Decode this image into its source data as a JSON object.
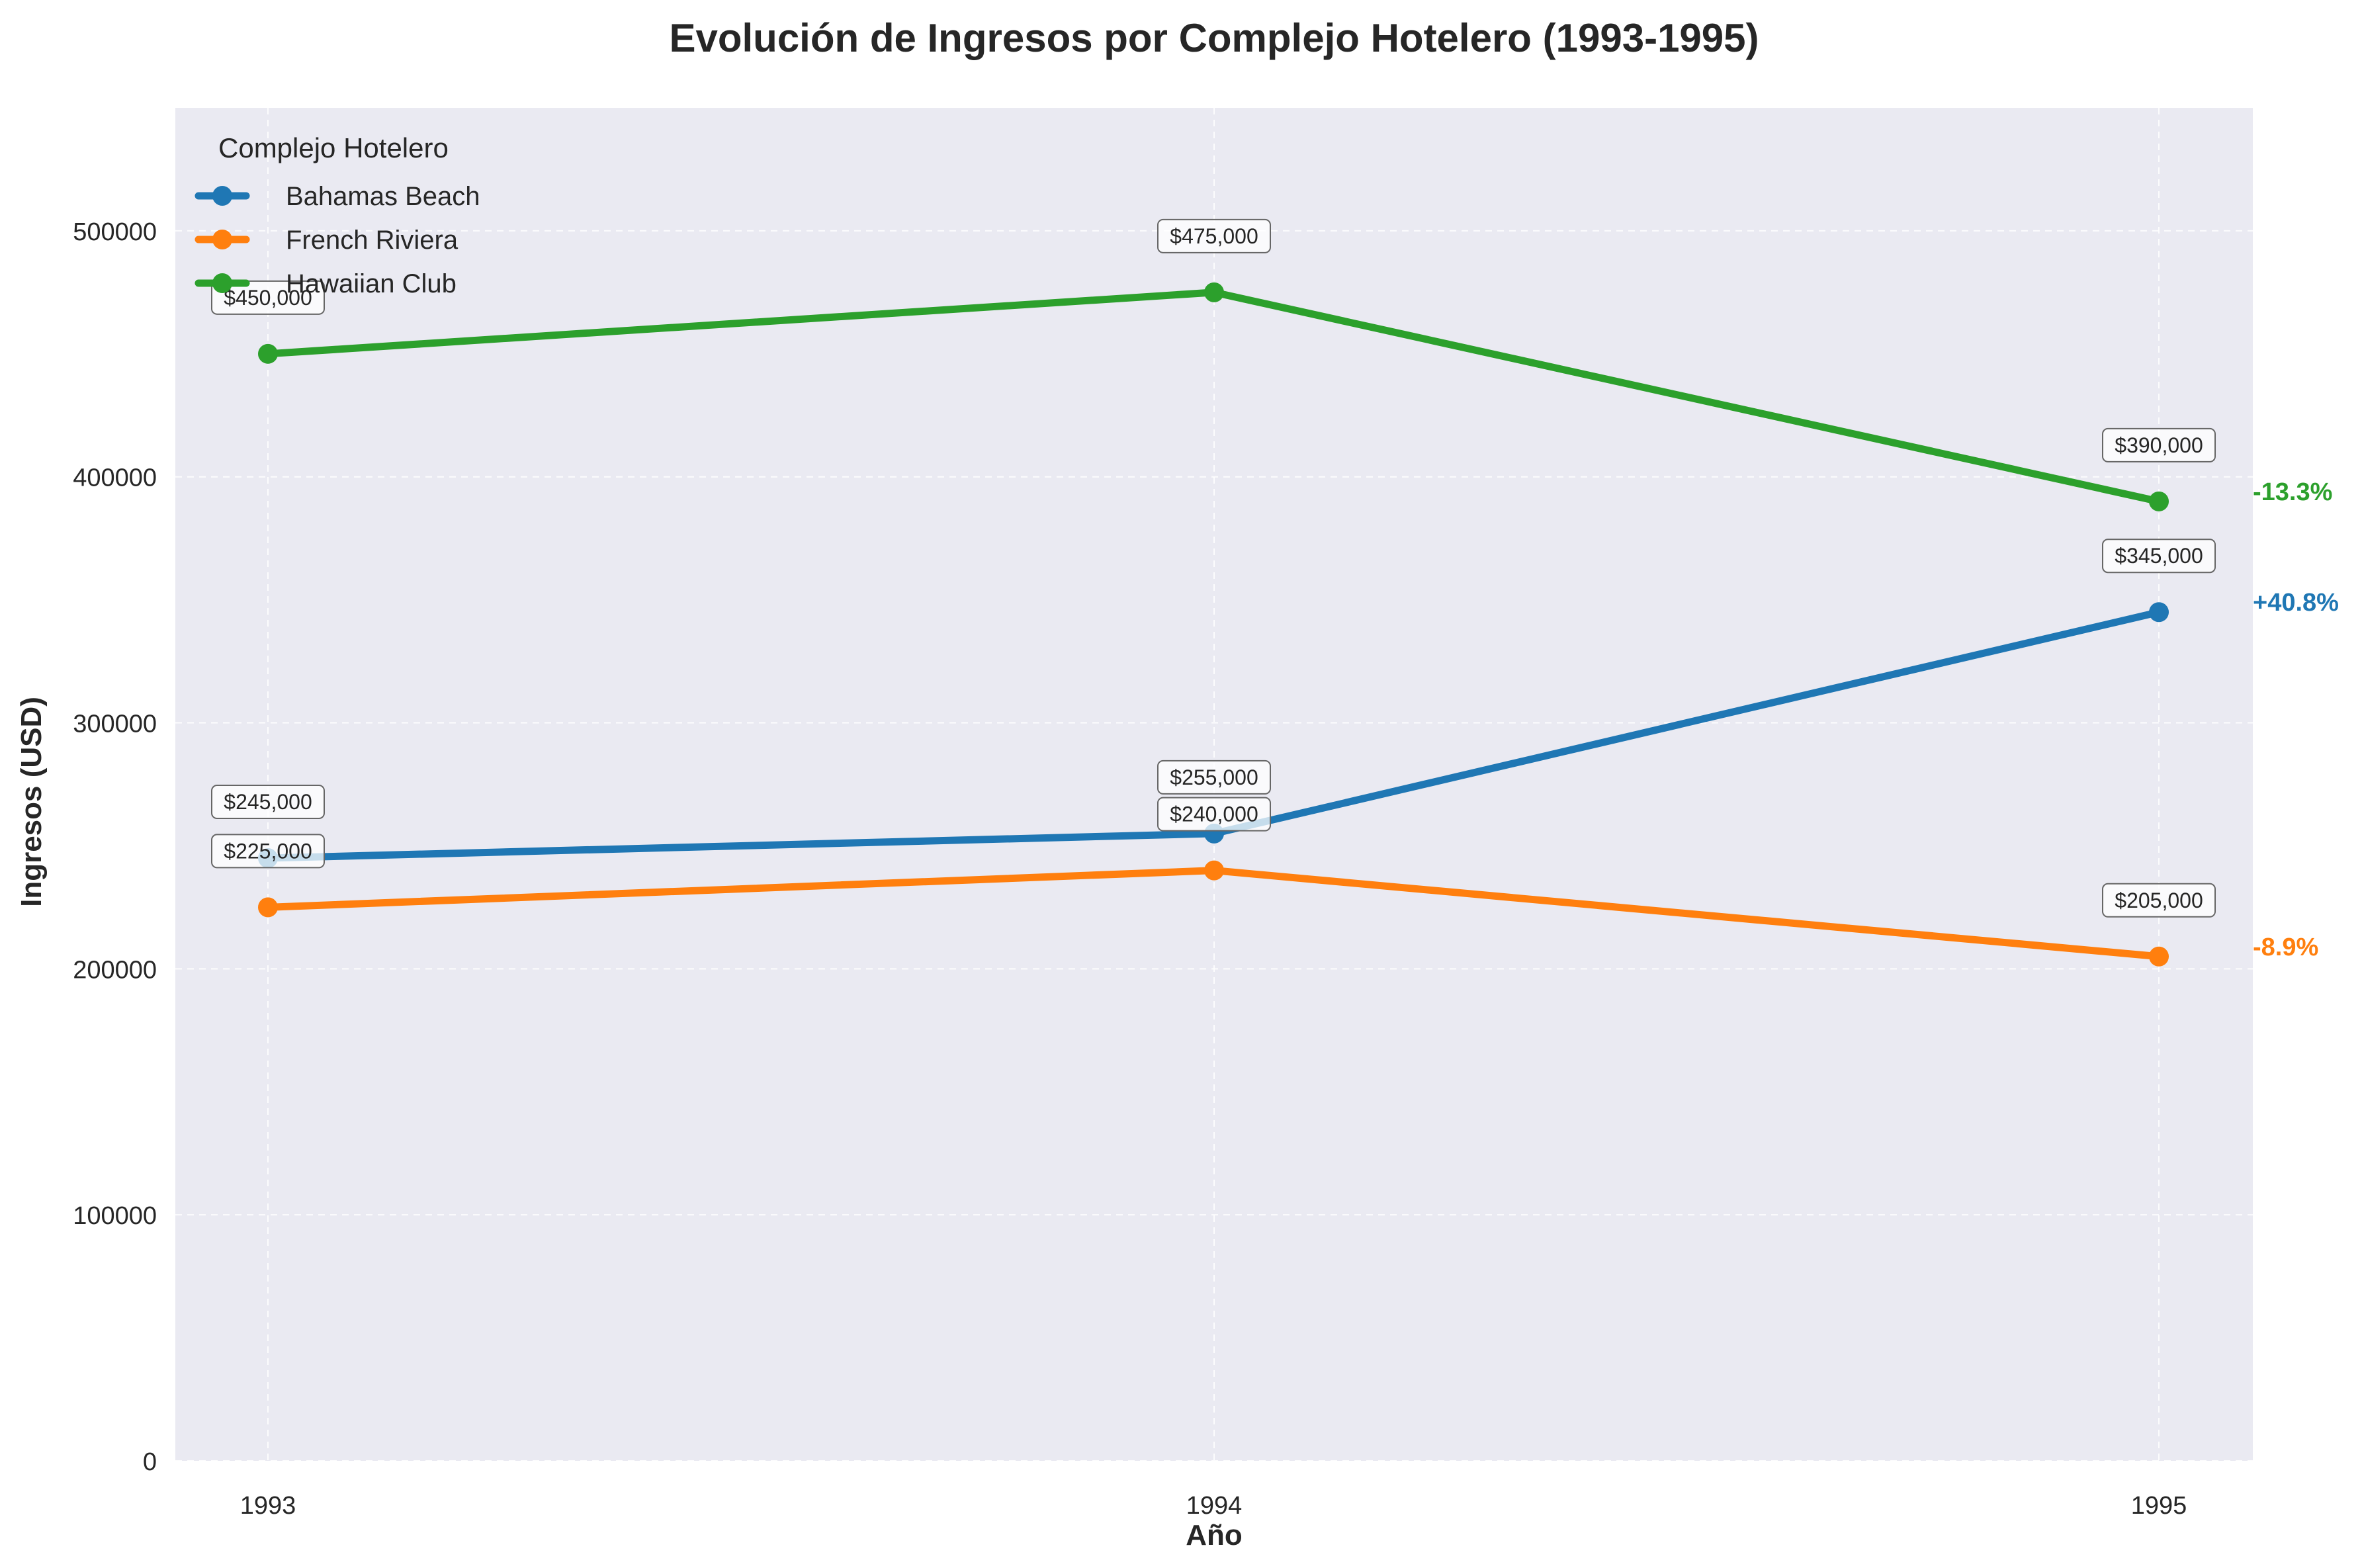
{
  "chart_data": {
    "type": "line",
    "title": "Evolución de Ingresos por Complejo Hotelero (1993-1995)",
    "xlabel": "Año",
    "ylabel": "Ingresos (USD)",
    "categories": [
      "1993",
      "1994",
      "1995"
    ],
    "ylim": [
      0,
      550000
    ],
    "yticks": [
      0,
      100000,
      200000,
      300000,
      400000,
      500000
    ],
    "ytick_labels": [
      "0",
      "100000",
      "200000",
      "300000",
      "400000",
      "500000"
    ],
    "grid": true,
    "legend": {
      "title": "Complejo Hotelero",
      "placement": "top-left"
    },
    "series": [
      {
        "name": "Bahamas Beach",
        "color": "#1f77b4",
        "values": [
          245000,
          255000,
          345000
        ],
        "labels": [
          "$245,000",
          "$255,000",
          "$345,000"
        ],
        "change": "+40.8%"
      },
      {
        "name": "French Riviera",
        "color": "#ff7f0e",
        "values": [
          225000,
          240000,
          205000
        ],
        "labels": [
          "$225,000",
          "$240,000",
          "$205,000"
        ],
        "change": "-8.9%"
      },
      {
        "name": "Hawaiian Club",
        "color": "#2ca02c",
        "values": [
          450000,
          475000,
          390000
        ],
        "labels": [
          "$450,000",
          "$475,000",
          "$390,000"
        ],
        "change": "-13.3%"
      }
    ]
  },
  "colors": {
    "plot_background": "#eaeaf2",
    "grid": "#ffffff"
  }
}
